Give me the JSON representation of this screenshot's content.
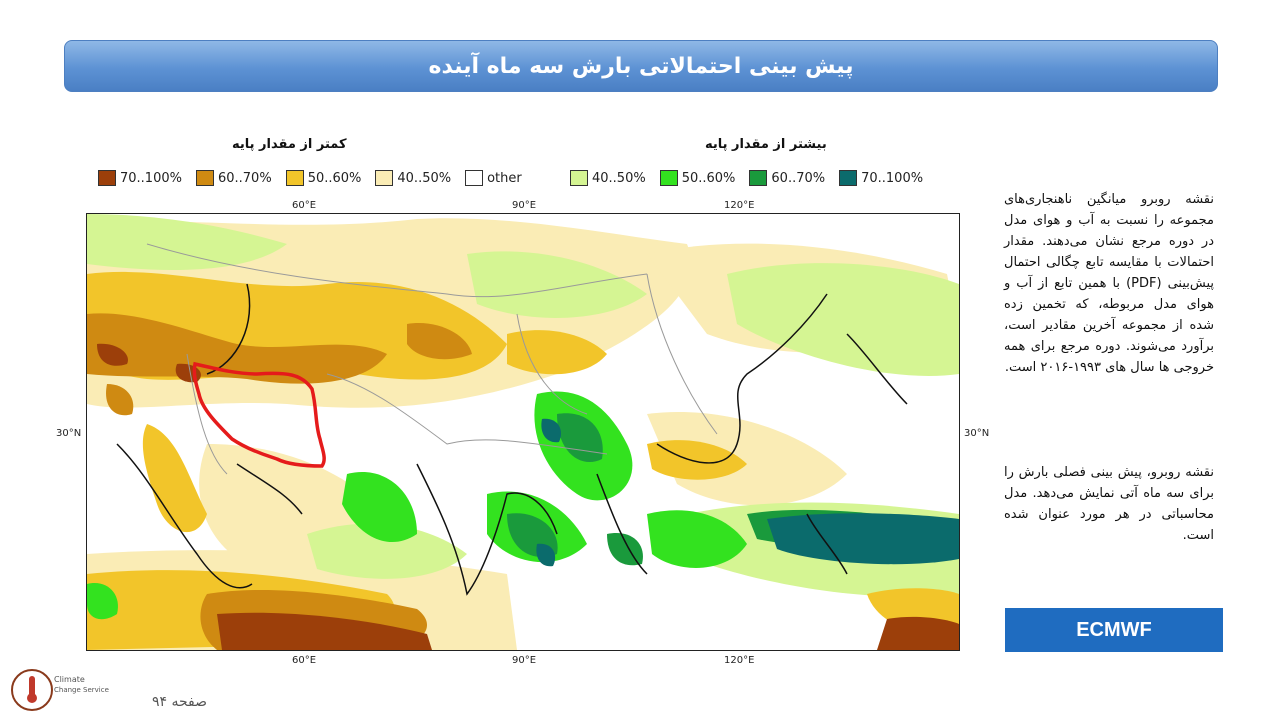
{
  "header": {
    "title": "پیش بینی احتمالاتی بارش سه ماه آینده"
  },
  "legend": {
    "above_title": "بیشتر از مقدار پایه",
    "below_title": "کمتر از مقدار پایه",
    "below_items": [
      {
        "label": "70..100%",
        "color": "#9c3f0a"
      },
      {
        "label": "60..70%",
        "color": "#cf8a12"
      },
      {
        "label": "50..60%",
        "color": "#f2c52a"
      },
      {
        "label": "40..50%",
        "color": "#faecb5"
      },
      {
        "label": "other",
        "color": "#ffffff"
      }
    ],
    "above_items": [
      {
        "label": "40..50%",
        "color": "#d5f593"
      },
      {
        "label": "50..60%",
        "color": "#33e21f"
      },
      {
        "label": "60..70%",
        "color": "#1a9a3c"
      },
      {
        "label": "70..100%",
        "color": "#0b6b6c"
      }
    ]
  },
  "map": {
    "lon_labels": [
      "60°E",
      "90°E",
      "120°E"
    ],
    "lat_labels": [
      "30°N",
      "30°N"
    ],
    "highlight_region": "Iran",
    "highlight_color": "#e51b1b"
  },
  "side": {
    "paragraph1": "نقشه روبرو میانگین ناهنجاری‌های مجموعه را نسبت به آب و هوای مدل در دوره مرجع نشان می‌دهند. مقدار احتمالات با مقایسه تابع چگالی احتمال پیش‌بینی (PDF) با همین تابع از آب و هوای مدل مربوطه، که تخمین زده شده از مجموعه آخرین مقادیر است، برآورد می‌شوند. دوره مرجع برای همه خروجی ها سال های ۱۹۹۳-۲۰۱۶ است.",
    "paragraph2": "نقشه روبرو، پیش بینی فصلی بارش را برای سه ماه آتی نمایش می‌دهد. مدل محاسباتی در هر مورد عنوان شده است.",
    "model": "ECMWF"
  },
  "footer": {
    "page_label": "صفحه ۹۴",
    "logo_text_1": "Climate",
    "logo_text_2": "Change Service"
  }
}
